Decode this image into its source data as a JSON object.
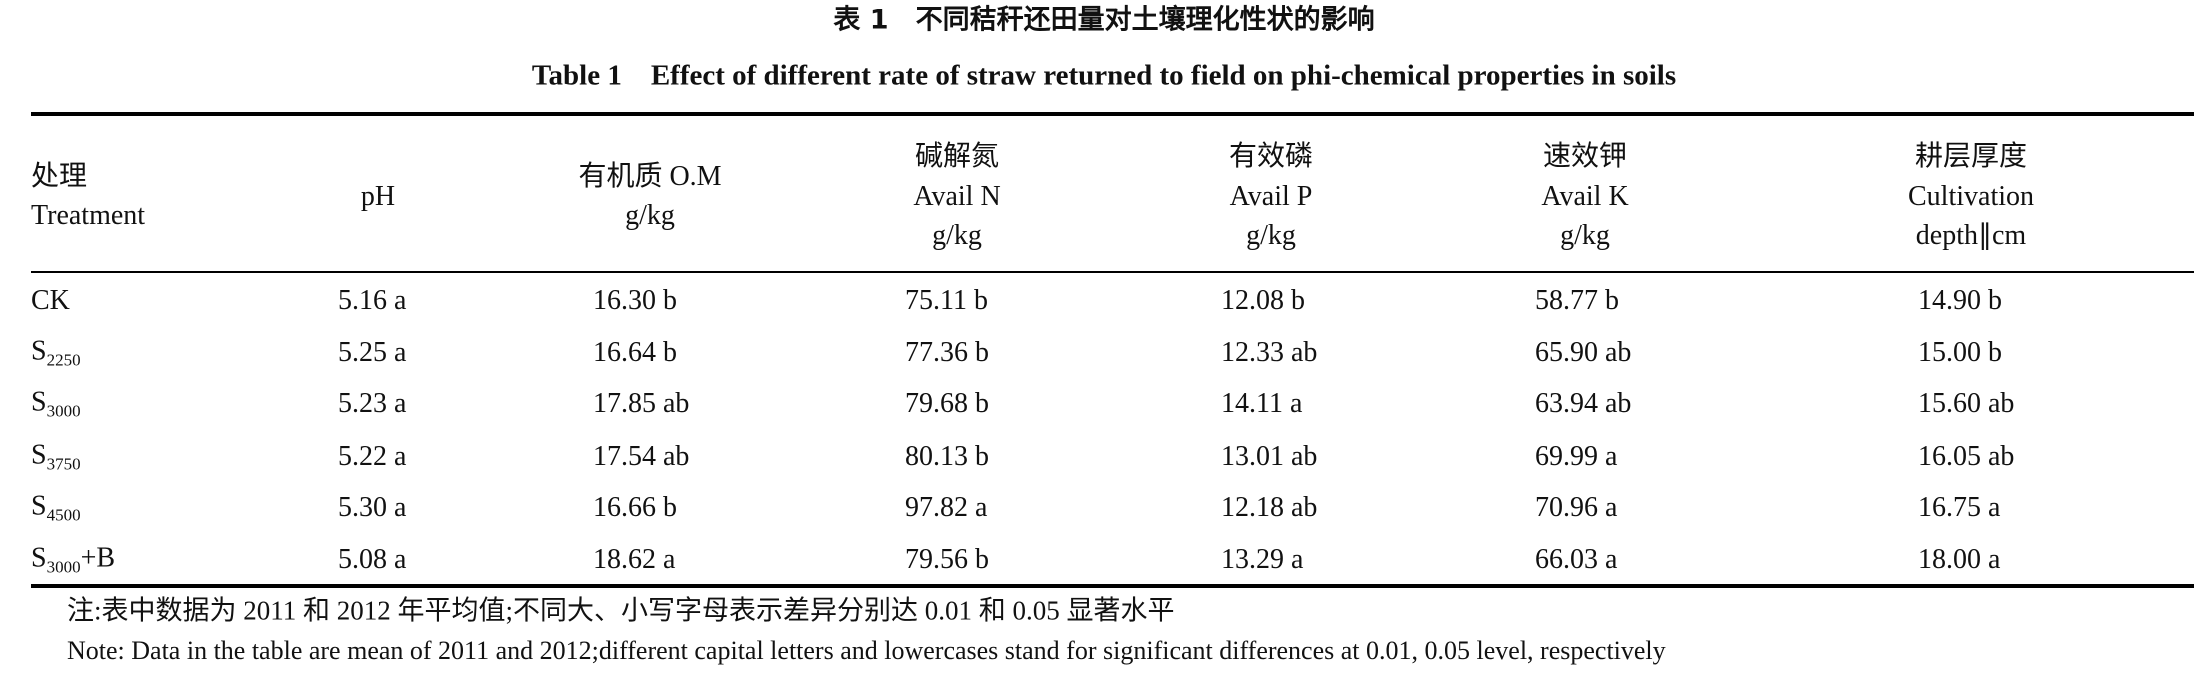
{
  "caption": {
    "zh": "表 1　不同秸秆还田量对土壤理化性状的影响",
    "en": "Table 1　Effect of different rate of straw returned to field on phi-chemical properties in soils"
  },
  "table": {
    "header": [
      {
        "lines": [
          "处理",
          "Treatment"
        ]
      },
      {
        "lines": [
          "pH"
        ]
      },
      {
        "lines": [
          "有机质 O.M",
          "g/kg"
        ]
      },
      {
        "lines": [
          "碱解氮",
          "Avail N",
          "g/kg"
        ]
      },
      {
        "lines": [
          "有效磷",
          "Avail P",
          "g/kg"
        ]
      },
      {
        "lines": [
          "速效钾",
          "Avail K",
          "g/kg"
        ]
      },
      {
        "lines": [
          "耕层厚度",
          "Cultivation",
          "depth∥cm"
        ]
      }
    ],
    "rows": [
      {
        "treatment": {
          "base": "CK"
        },
        "values": [
          "5.16 a",
          "16.30 b",
          "75.11 b",
          "12.08 b",
          "58.77 b",
          "14.90 b"
        ]
      },
      {
        "treatment": {
          "base": "S",
          "sub": "2250"
        },
        "values": [
          "5.25 a",
          "16.64 b",
          "77.36 b",
          "12.33 ab",
          "65.90 ab",
          "15.00 b"
        ]
      },
      {
        "treatment": {
          "base": "S",
          "sub": "3000"
        },
        "values": [
          "5.23 a",
          "17.85 ab",
          "79.68 b",
          "14.11 a",
          "63.94 ab",
          "15.60 ab"
        ]
      },
      {
        "treatment": {
          "base": "S",
          "sub": "3750"
        },
        "values": [
          "5.22 a",
          "17.54 ab",
          "80.13 b",
          "13.01 ab",
          "69.99 a",
          "16.05 ab"
        ]
      },
      {
        "treatment": {
          "base": "S",
          "sub": "4500"
        },
        "values": [
          "5.30 a",
          "16.66 b",
          "97.82 a",
          "12.18 ab",
          "70.96 a",
          "16.75 a"
        ]
      },
      {
        "treatment": {
          "base": "S",
          "sub": "3000",
          "suffix": "+B"
        },
        "values": [
          "5.08 a",
          "18.62 a",
          "79.56 b",
          "13.29 a",
          "66.03 a",
          "18.00 a"
        ]
      }
    ]
  },
  "notes": {
    "zh": "注:表中数据为 2011 和 2012 年平均值;不同大、小写字母表示差异分别达 0.01 和 0.05 显著水平",
    "en": "Note: Data in the table are mean of 2011 and 2012;different capital letters and lowercases stand for significant differences at 0.01, 0.05 level, respectively"
  }
}
